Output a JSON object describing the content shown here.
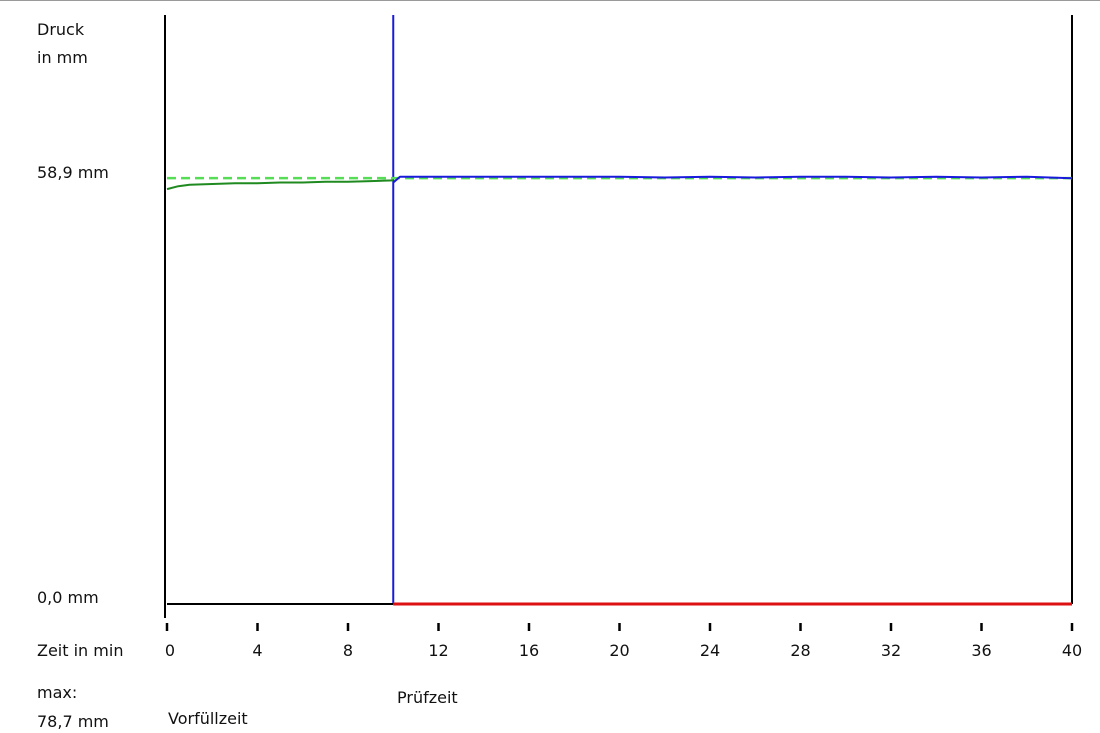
{
  "labels": {
    "y_title_line1": "Druck",
    "y_title_line2": "in mm",
    "y_top_value": "58,9 mm",
    "y_zero_value": "0,0 mm",
    "x_title": "Zeit in min",
    "max_label": "max:",
    "max_value": "78,7 mm",
    "phase_prefill": "Vorfüllzeit",
    "phase_test": "Prüfzeit"
  },
  "colors": {
    "prefill": "#1f8a1f",
    "test": "#1a1adc",
    "reference": "#55dd55",
    "baseline_test": "#dd1111",
    "axis": "#000000"
  },
  "chart_data": {
    "type": "line",
    "title": "",
    "xlabel": "Zeit in min",
    "ylabel": "Druck in mm",
    "xlim": [
      0,
      40
    ],
    "ylim": [
      0,
      58.9
    ],
    "x_ticks": [
      0,
      4,
      8,
      12,
      16,
      20,
      24,
      28,
      32,
      36,
      40
    ],
    "y_tick_labels": [
      "58,9 mm",
      "0,0 mm"
    ],
    "phase_boundary_x": 10,
    "reference_level": 58.6,
    "max": 78.7,
    "series": [
      {
        "name": "Vorfüllzeit",
        "x": [
          0,
          0.5,
          1,
          2,
          3,
          4,
          5,
          6,
          7,
          8,
          9,
          10
        ],
        "y": [
          57.1,
          57.5,
          57.7,
          57.8,
          57.9,
          57.9,
          58.0,
          58.0,
          58.1,
          58.1,
          58.2,
          58.3
        ]
      },
      {
        "name": "Prüfzeit",
        "x": [
          10,
          10.3,
          11,
          12,
          14,
          16,
          18,
          20,
          22,
          24,
          26,
          28,
          30,
          32,
          34,
          36,
          38,
          40
        ],
        "y": [
          58.0,
          58.8,
          58.8,
          58.8,
          58.8,
          58.8,
          58.8,
          58.8,
          58.7,
          58.8,
          58.7,
          58.8,
          58.8,
          58.7,
          58.8,
          58.7,
          58.8,
          58.6
        ]
      }
    ]
  }
}
